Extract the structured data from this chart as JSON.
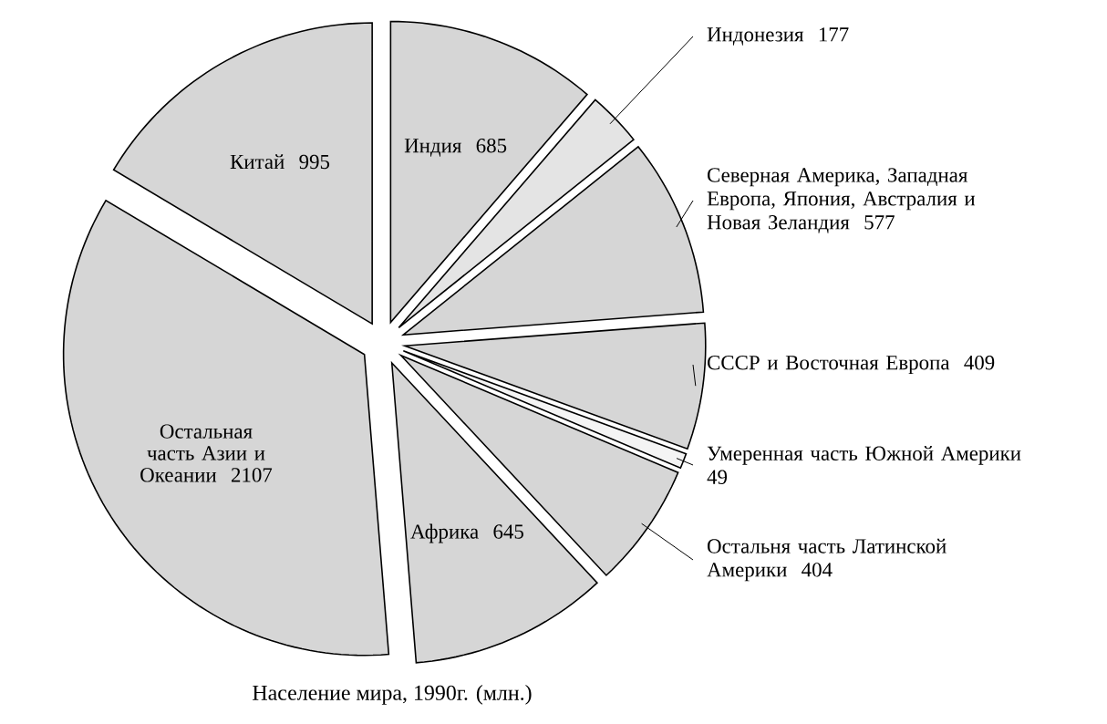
{
  "chart_data": {
    "type": "pie",
    "title": "Население мира, 1990г. (млн.)",
    "categories": [
      "Индия",
      "Индонезия",
      "Северная Америка, Западная Европа, Япония, Австралия и Новая Зеландия",
      "СССР и Восточная Европа",
      "Умеренная часть Южной Америки",
      "Остальня часть Латинской Америки",
      "Африка",
      "Остальная часть Азии и Океании",
      "Китай"
    ],
    "values": [
      685,
      177,
      577,
      409,
      49,
      404,
      645,
      2107,
      995
    ],
    "colors": [
      "#d6d6d6",
      "#e4e4e4",
      "#d6d6d6",
      "#d6d6d6",
      "#f4f4f4",
      "#d6d6d6",
      "#d6d6d6",
      "#d6d6d6",
      "#d6d6d6"
    ],
    "data_labels": true
  }
}
